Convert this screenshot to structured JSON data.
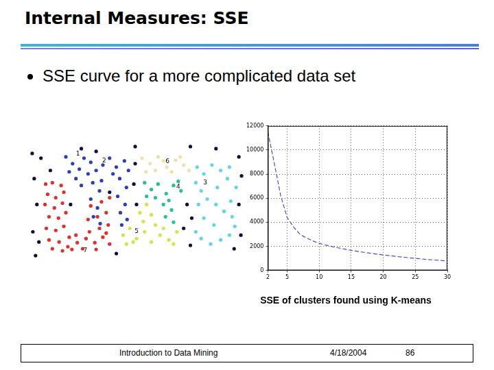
{
  "slide": {
    "title": "Internal Measures: SSE",
    "bullet": "SSE curve for a more complicated data set",
    "footer": [
      "Introduction to Data Mining",
      "4/18/2004",
      "86"
    ]
  },
  "chart_data": [
    {
      "type": "scatter",
      "xlim": [
        40,
        360
      ],
      "ylim": [
        210,
        380
      ],
      "tick_labels": false,
      "grid": false,
      "marker": "circle",
      "series": [
        {
          "color": "#e0302a",
          "points": [
            [
              65,
              270
            ],
            [
              75,
              268
            ],
            [
              88,
              272
            ],
            [
              68,
              285
            ],
            [
              80,
              290
            ],
            [
              92,
              282
            ],
            [
              64,
              300
            ],
            [
              78,
              305
            ],
            [
              90,
              298
            ],
            [
              70,
              318
            ],
            [
              84,
              320
            ],
            [
              95,
              312
            ],
            [
              66,
              335
            ],
            [
              80,
              338
            ],
            [
              92,
              332
            ],
            [
              70,
              352
            ],
            [
              85,
              355
            ],
            [
              100,
              348
            ],
            [
              112,
              356
            ],
            [
              98,
              362
            ],
            [
              110,
              345
            ],
            [
              125,
              350
            ],
            [
              138,
              356
            ],
            [
              150,
              348
            ],
            [
              160,
              358
            ],
            [
              130,
              340
            ],
            [
              145,
              335
            ],
            [
              158,
              330
            ],
            [
              128,
              322
            ],
            [
              142,
              318
            ],
            [
              155,
              312
            ],
            [
              132,
              302
            ],
            [
              148,
              296
            ],
            [
              160,
              290
            ],
            [
              75,
              365
            ],
            [
              90,
              368
            ],
            [
              120,
              365
            ],
            [
              140,
              366
            ],
            [
              155,
              342
            ],
            [
              104,
              366
            ]
          ]
        },
        {
          "color": "#2a3dbf",
          "points": [
            [
              95,
              230
            ],
            [
              105,
              240
            ],
            [
              115,
              248
            ],
            [
              122,
              232
            ],
            [
              132,
              238
            ],
            [
              140,
              250
            ],
            [
              150,
              242
            ],
            [
              160,
              232
            ],
            [
              170,
              245
            ],
            [
              182,
              236
            ],
            [
              188,
              250
            ],
            [
              100,
              252
            ],
            [
              128,
              255
            ],
            [
              135,
              268
            ],
            [
              145,
              280
            ],
            [
              132,
              292
            ],
            [
              142,
              305
            ],
            [
              136,
              318
            ],
            [
              146,
              328
            ],
            [
              175,
              262
            ],
            [
              185,
              275
            ],
            [
              172,
              288
            ],
            [
              183,
              300
            ],
            [
              176,
              312
            ],
            [
              186,
              322
            ],
            [
              178,
              330
            ],
            [
              110,
              262
            ],
            [
              118,
              272
            ],
            [
              165,
              255
            ],
            [
              148,
              265
            ]
          ]
        },
        {
          "color": "#efe2a6",
          "points": [
            [
              208,
              232
            ],
            [
              220,
              240
            ],
            [
              232,
              230
            ],
            [
              245,
              245
            ],
            [
              258,
              235
            ],
            [
              270,
              242
            ],
            [
              278,
              250
            ],
            [
              214,
              252
            ],
            [
              228,
              250
            ],
            [
              240,
              236
            ],
            [
              252,
              252
            ],
            [
              265,
              230
            ]
          ]
        },
        {
          "color": "#22c487",
          "points": [
            [
              212,
              268
            ],
            [
              222,
              278
            ],
            [
              232,
              270
            ],
            [
              244,
              284
            ],
            [
              255,
              272
            ],
            [
              266,
              280
            ],
            [
              215,
              288
            ],
            [
              228,
              290
            ],
            [
              262,
              266
            ],
            [
              240,
              300
            ],
            [
              252,
              308
            ],
            [
              243,
              318
            ],
            [
              255,
              326
            ],
            [
              248,
              294
            ]
          ]
        },
        {
          "color": "#d2e64a",
          "points": [
            [
              180,
              345
            ],
            [
              190,
              335
            ],
            [
              200,
              350
            ],
            [
              212,
              340
            ],
            [
              222,
              355
            ],
            [
              235,
              345
            ],
            [
              248,
              352
            ],
            [
              260,
              340
            ],
            [
              215,
              300
            ],
            [
              222,
              315
            ],
            [
              210,
              325
            ],
            [
              228,
              330
            ],
            [
              195,
              355
            ],
            [
              240,
              335
            ],
            [
              255,
              358
            ],
            [
              185,
              358
            ],
            [
              205,
              312
            ]
          ]
        },
        {
          "color": "#62d6e8",
          "points": [
            [
              290,
              245
            ],
            [
              300,
              255
            ],
            [
              312,
              242
            ],
            [
              325,
              250
            ],
            [
              338,
              245
            ],
            [
              288,
              268
            ],
            [
              296,
              280
            ],
            [
              305,
              292
            ],
            [
              318,
              300
            ],
            [
              330,
              310
            ],
            [
              342,
              318
            ],
            [
              346,
              332
            ],
            [
              338,
              345
            ],
            [
              325,
              352
            ],
            [
              310,
              358
            ],
            [
              296,
              350
            ],
            [
              288,
              340
            ],
            [
              335,
              262
            ],
            [
              348,
              275
            ],
            [
              300,
              320
            ],
            [
              315,
              330
            ],
            [
              292,
              300
            ],
            [
              340,
              295
            ],
            [
              320,
              275
            ]
          ]
        },
        {
          "color": "#101040",
          "points": [
            [
              45,
              225
            ],
            [
              58,
              232
            ],
            [
              48,
              262
            ],
            [
              52,
              300
            ],
            [
              46,
              340
            ],
            [
              55,
              355
            ],
            [
              72,
              250
            ],
            [
              118,
              218
            ],
            [
              140,
              222
            ],
            [
              160,
              282
            ],
            [
              198,
              240
            ],
            [
              196,
              270
            ],
            [
              200,
              300
            ],
            [
              275,
              300
            ],
            [
              282,
              320
            ],
            [
              270,
              335
            ],
            [
              352,
              230
            ],
            [
              356,
              258
            ],
            [
              352,
              300
            ],
            [
              355,
              345
            ],
            [
              345,
              365
            ],
            [
              280,
              360
            ],
            [
              170,
              372
            ],
            [
              50,
              375
            ],
            [
              102,
              300
            ],
            [
              198,
              215
            ],
            [
              280,
              215
            ],
            [
              318,
              218
            ]
          ]
        }
      ],
      "annotations": [
        {
          "text": "1",
          "x": 113,
          "y": 226
        },
        {
          "text": "2",
          "x": 152,
          "y": 236
        },
        {
          "text": "6",
          "x": 246,
          "y": 237
        },
        {
          "text": "4",
          "x": 262,
          "y": 274
        },
        {
          "text": "3",
          "x": 302,
          "y": 268
        },
        {
          "text": "5",
          "x": 200,
          "y": 339
        },
        {
          "text": "7",
          "x": 124,
          "y": 368
        }
      ]
    },
    {
      "type": "line",
      "title": "SSE of clusters found using K-means",
      "x": [
        2,
        3,
        4,
        5,
        6,
        7,
        8,
        9,
        10,
        11,
        12,
        13,
        14,
        15,
        16,
        17,
        18,
        19,
        20,
        21,
        22,
        23,
        24,
        25,
        26,
        27,
        28,
        29,
        30
      ],
      "values": [
        11500,
        8900,
        6200,
        4400,
        3600,
        3000,
        2700,
        2450,
        2250,
        2100,
        1980,
        1870,
        1760,
        1660,
        1580,
        1500,
        1420,
        1350,
        1280,
        1220,
        1160,
        1100,
        1050,
        1000,
        950,
        900,
        860,
        820,
        780
      ],
      "color": "#4b4bd6",
      "line_style": "dashed",
      "marker": "none",
      "xlim": [
        2,
        30
      ],
      "ylim": [
        0,
        12000
      ],
      "xticks": [
        2,
        5,
        10,
        15,
        20,
        25,
        30
      ],
      "yticks": [
        0,
        2000,
        4000,
        6000,
        8000,
        10000,
        12000
      ],
      "grid": true
    }
  ]
}
